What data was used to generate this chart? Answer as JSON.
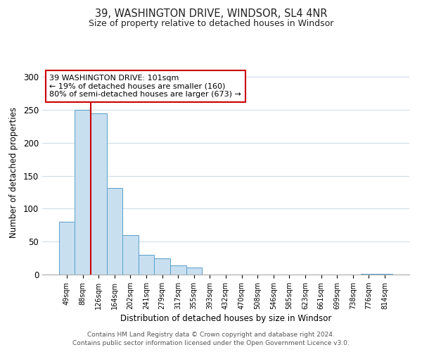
{
  "title": "39, WASHINGTON DRIVE, WINDSOR, SL4 4NR",
  "subtitle": "Size of property relative to detached houses in Windsor",
  "xlabel": "Distribution of detached houses by size in Windsor",
  "ylabel": "Number of detached properties",
  "bar_color": "#c8dff0",
  "bar_edge_color": "#5a9ec9",
  "categories": [
    "49sqm",
    "88sqm",
    "126sqm",
    "164sqm",
    "202sqm",
    "241sqm",
    "279sqm",
    "317sqm",
    "355sqm",
    "393sqm",
    "432sqm",
    "470sqm",
    "508sqm",
    "546sqm",
    "585sqm",
    "623sqm",
    "661sqm",
    "699sqm",
    "738sqm",
    "776sqm",
    "814sqm"
  ],
  "values": [
    80,
    250,
    245,
    132,
    60,
    30,
    25,
    14,
    11,
    0,
    0,
    0,
    0,
    0,
    0,
    0,
    0,
    0,
    0,
    1,
    1
  ],
  "ylim": [
    0,
    310
  ],
  "yticks": [
    0,
    50,
    100,
    150,
    200,
    250,
    300
  ],
  "marker_bar_index": 1,
  "marker_color": "#cc0000",
  "annotation_title": "39 WASHINGTON DRIVE: 101sqm",
  "annotation_line1": "← 19% of detached houses are smaller (160)",
  "annotation_line2": "80% of semi-detached houses are larger (673) →",
  "annotation_box_edge": "#cc0000",
  "footer_line1": "Contains HM Land Registry data © Crown copyright and database right 2024.",
  "footer_line2": "Contains public sector information licensed under the Open Government Licence v3.0.",
  "background_color": "#ffffff",
  "grid_color": "#d0dce8"
}
